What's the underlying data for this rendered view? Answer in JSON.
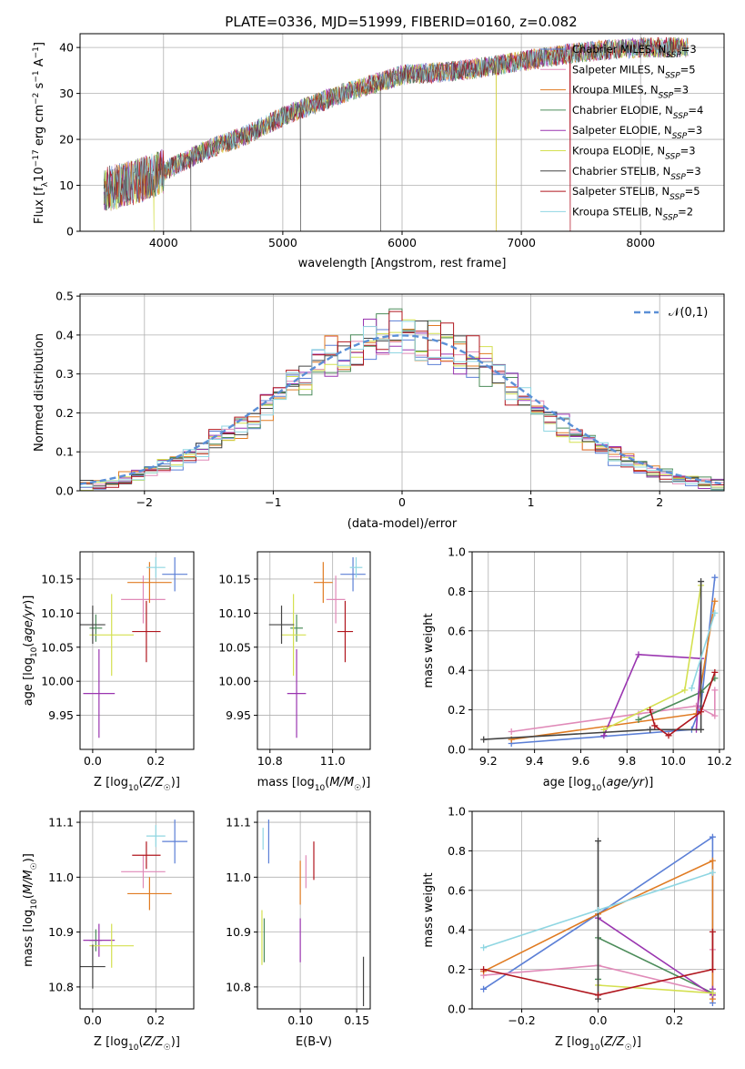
{
  "title": "PLATE=0336, MJD=51999, FIBERID=0160, z=0.082",
  "colors": {
    "Chabrier MILES": "#5b7fd6",
    "Salpeter MILES": "#e08ab8",
    "Kroupa MILES": "#e07b22",
    "Chabrier ELODIE": "#4c8c5a",
    "Salpeter ELODIE": "#9a35b0",
    "Kroupa ELODIE": "#d4e050",
    "Chabrier STELIB": "#444444",
    "Salpeter STELIB": "#b0161e",
    "Kroupa STELIB": "#8fd6e2",
    "normal": "#5b8fd6"
  },
  "chart_data": [
    {
      "type": "line",
      "panel": "spectrum",
      "xlabel": "wavelength [Angstrom, rest frame]",
      "ylabel": "Flux [f_λ10^-17 erg cm^-2 s^-1 A^-1]",
      "xlim": [
        3300,
        8700
      ],
      "ylim": [
        0,
        43
      ],
      "xticks": [
        4000,
        5000,
        6000,
        7000,
        8000
      ],
      "yticks": [
        0,
        10,
        20,
        30,
        40
      ],
      "grid": true,
      "legend": "upper-right",
      "legend_entries": [
        {
          "name": "Chabrier MILES, N_SSP=3",
          "main": "Chabrier MILES, N",
          "sub": "SSP",
          "tail": "=3"
        },
        {
          "name": "Salpeter MILES, N_SSP=5",
          "main": "Salpeter MILES, N",
          "sub": "SSP",
          "tail": "=5"
        },
        {
          "name": "Kroupa MILES, N_SSP=3",
          "main": "Kroupa MILES, N",
          "sub": "SSP",
          "tail": "=3"
        },
        {
          "name": "Chabrier ELODIE, N_SSP=4",
          "main": "Chabrier ELODIE, N",
          "sub": "SSP",
          "tail": "=4"
        },
        {
          "name": "Salpeter ELODIE, N_SSP=3",
          "main": "Salpeter ELODIE, N",
          "sub": "SSP",
          "tail": "=3"
        },
        {
          "name": "Kroupa ELODIE, N_SSP=3",
          "main": "Kroupa ELODIE, N",
          "sub": "SSP",
          "tail": "=3"
        },
        {
          "name": "Chabrier STELIB, N_SSP=3",
          "main": "Chabrier STELIB, N",
          "sub": "SSP",
          "tail": "=3"
        },
        {
          "name": "Salpeter STELIB, N_SSP=5",
          "main": "Salpeter STELIB, N",
          "sub": "SSP",
          "tail": "=5"
        },
        {
          "name": "Kroupa STELIB, N_SSP=2",
          "main": "Kroupa STELIB, N",
          "sub": "SSP",
          "tail": "=2"
        }
      ],
      "continuum": {
        "x": [
          3500,
          3800,
          4000,
          4300,
          4700,
          5000,
          5500,
          6000,
          6500,
          7000,
          7500,
          8000,
          8400
        ],
        "y": [
          9,
          11,
          13,
          17,
          21,
          25,
          30,
          34,
          35,
          37,
          39,
          40,
          40
        ]
      },
      "drops": [
        {
          "series": "Kroupa ELODIE",
          "x": 3920
        },
        {
          "series": "Chabrier STELIB",
          "x": 4230
        },
        {
          "series": "Chabrier STELIB",
          "x": 5150
        },
        {
          "series": "Chabrier STELIB",
          "x": 5820
        },
        {
          "series": "Kroupa MILES",
          "x": 6790
        },
        {
          "series": "Kroupa ELODIE",
          "x": 6790
        },
        {
          "series": "Salpeter MILES",
          "x": 7410
        },
        {
          "series": "Salpeter STELIB",
          "x": 7410
        }
      ]
    },
    {
      "type": "line",
      "panel": "residual-histogram",
      "xlabel": "(data-model)/error",
      "ylabel": "Normed distribution",
      "xlim": [
        -2.5,
        2.5
      ],
      "ylim": [
        0,
        0.505
      ],
      "xticks": [
        -2,
        -1,
        0,
        1,
        2
      ],
      "yticks": [
        0.0,
        0.1,
        0.2,
        0.3,
        0.4,
        0.5
      ],
      "grid": true,
      "bin_width": 0.1,
      "reference": {
        "name": "𝒩(0,1)",
        "mean": 0,
        "sigma": 1
      },
      "legend": "upper-right"
    },
    {
      "type": "scatter",
      "panel": "age-vs-Z",
      "xlabel": "Z [log10(Z/Z☉)]",
      "ylabel": "age [log10(age/yr)]",
      "xlim": [
        -0.04,
        0.32
      ],
      "ylim": [
        9.9,
        10.19
      ],
      "xticks": [
        0.0,
        0.2
      ],
      "yticks": [
        9.95,
        10.0,
        10.05,
        10.1,
        10.15
      ],
      "grid": true,
      "points": [
        {
          "series": "Chabrier MILES",
          "x": 0.26,
          "y": 10.157,
          "xerr": 0.04,
          "yerr": 0.025
        },
        {
          "series": "Salpeter MILES",
          "x": 0.16,
          "y": 10.12,
          "xerr": 0.07,
          "yerr": 0.035
        },
        {
          "series": "Kroupa MILES",
          "x": 0.18,
          "y": 10.145,
          "xerr": 0.07,
          "yerr": 0.03
        },
        {
          "series": "Chabrier ELODIE",
          "x": 0.01,
          "y": 10.078,
          "xerr": 0.02,
          "yerr": 0.02
        },
        {
          "series": "Salpeter ELODIE",
          "x": 0.02,
          "y": 9.982,
          "xerr": 0.05,
          "yerr": 0.065
        },
        {
          "series": "Kroupa ELODIE",
          "x": 0.06,
          "y": 10.068,
          "xerr": 0.07,
          "yerr": 0.06
        },
        {
          "series": "Chabrier STELIB",
          "x": 0.0,
          "y": 10.083,
          "xerr": 0.04,
          "yerr": 0.028
        },
        {
          "series": "Salpeter STELIB",
          "x": 0.17,
          "y": 10.073,
          "xerr": 0.045,
          "yerr": 0.045
        },
        {
          "series": "Kroupa STELIB",
          "x": 0.2,
          "y": 10.167,
          "xerr": 0.03,
          "yerr": 0.015
        }
      ]
    },
    {
      "type": "scatter",
      "panel": "age-vs-mass",
      "xlabel": "mass [log10(M/M☉)]",
      "ylabel": "",
      "xlim": [
        10.76,
        11.12
      ],
      "ylim": [
        9.9,
        10.19
      ],
      "xticks": [
        10.8,
        11.0
      ],
      "yticks": [
        9.95,
        10.0,
        10.05,
        10.1,
        10.15
      ],
      "grid": true,
      "points": [
        {
          "series": "Chabrier MILES",
          "x": 11.065,
          "y": 10.157,
          "xerr": 0.04,
          "yerr": 0.025
        },
        {
          "series": "Salpeter MILES",
          "x": 11.01,
          "y": 10.12,
          "xerr": 0.03,
          "yerr": 0.035
        },
        {
          "series": "Kroupa MILES",
          "x": 10.97,
          "y": 10.145,
          "xerr": 0.03,
          "yerr": 0.03
        },
        {
          "series": "Chabrier ELODIE",
          "x": 10.885,
          "y": 10.078,
          "xerr": 0.02,
          "yerr": 0.02
        },
        {
          "series": "Salpeter ELODIE",
          "x": 10.885,
          "y": 9.982,
          "xerr": 0.03,
          "yerr": 0.065
        },
        {
          "series": "Kroupa ELODIE",
          "x": 10.875,
          "y": 10.068,
          "xerr": 0.04,
          "yerr": 0.06
        },
        {
          "series": "Chabrier STELIB",
          "x": 10.837,
          "y": 10.083,
          "xerr": 0.04,
          "yerr": 0.028
        },
        {
          "series": "Salpeter STELIB",
          "x": 11.04,
          "y": 10.073,
          "xerr": 0.025,
          "yerr": 0.045
        },
        {
          "series": "Kroupa STELIB",
          "x": 11.075,
          "y": 10.167,
          "xerr": 0.02,
          "yerr": 0.015
        }
      ]
    },
    {
      "type": "line",
      "panel": "mass-weight-vs-age",
      "xlabel": "age [log10(age/yr)]",
      "ylabel": "mass weight",
      "xlim": [
        9.13,
        10.22
      ],
      "ylim": [
        0,
        1.0
      ],
      "xticks": [
        9.2,
        9.4,
        9.6,
        9.8,
        10.0,
        10.2
      ],
      "yticks": [
        0.0,
        0.2,
        0.4,
        0.6,
        0.8,
        1.0
      ],
      "grid": true,
      "series": [
        {
          "name": "Chabrier MILES",
          "x": [
            9.3,
            10.08,
            10.12,
            10.18
          ],
          "y": [
            0.03,
            0.1,
            0.22,
            0.87
          ]
        },
        {
          "name": "Salpeter MILES",
          "x": [
            9.3,
            9.85,
            10.1,
            10.18,
            10.18
          ],
          "y": [
            0.09,
            0.18,
            0.22,
            0.17,
            0.3
          ]
        },
        {
          "name": "Kroupa MILES",
          "x": [
            9.3,
            10.1,
            10.18
          ],
          "y": [
            0.05,
            0.18,
            0.75
          ]
        },
        {
          "name": "Chabrier ELODIE",
          "x": [
            9.85,
            10.12,
            10.18
          ],
          "y": [
            0.15,
            0.29,
            0.36
          ]
        },
        {
          "name": "Salpeter ELODIE",
          "x": [
            9.7,
            9.85,
            10.12,
            10.1
          ],
          "y": [
            0.07,
            0.48,
            0.46,
            0.1
          ]
        },
        {
          "name": "Kroupa ELODIE",
          "x": [
            9.7,
            10.05,
            10.12
          ],
          "y": [
            0.1,
            0.3,
            0.83
          ]
        },
        {
          "name": "Chabrier STELIB",
          "x": [
            9.18,
            9.9,
            10.12,
            10.12
          ],
          "y": [
            0.05,
            0.1,
            0.1,
            0.85
          ]
        },
        {
          "name": "Salpeter STELIB",
          "x": [
            9.9,
            9.92,
            9.98,
            10.12,
            10.18
          ],
          "y": [
            0.2,
            0.12,
            0.07,
            0.19,
            0.39
          ]
        },
        {
          "name": "Kroupa STELIB",
          "x": [
            10.08,
            10.18
          ],
          "y": [
            0.31,
            0.69
          ]
        }
      ]
    },
    {
      "type": "scatter",
      "panel": "mass-vs-Z",
      "xlabel": "Z [log10(Z/Z☉)]",
      "ylabel": "mass [log10(M/M☉)]",
      "xlim": [
        -0.04,
        0.32
      ],
      "ylim": [
        10.76,
        11.12
      ],
      "xticks": [
        0.0,
        0.2
      ],
      "yticks": [
        10.8,
        10.9,
        11.0,
        11.1
      ],
      "grid": true,
      "points": [
        {
          "series": "Chabrier MILES",
          "x": 0.26,
          "y": 11.065,
          "xerr": 0.04,
          "yerr": 0.04
        },
        {
          "series": "Salpeter MILES",
          "x": 0.16,
          "y": 11.01,
          "xerr": 0.07,
          "yerr": 0.03
        },
        {
          "series": "Kroupa MILES",
          "x": 0.18,
          "y": 10.97,
          "xerr": 0.07,
          "yerr": 0.03
        },
        {
          "series": "Chabrier ELODIE",
          "x": 0.01,
          "y": 10.885,
          "xerr": 0.02,
          "yerr": 0.02
        },
        {
          "series": "Salpeter ELODIE",
          "x": 0.02,
          "y": 10.885,
          "xerr": 0.05,
          "yerr": 0.03
        },
        {
          "series": "Kroupa ELODIE",
          "x": 0.06,
          "y": 10.875,
          "xerr": 0.07,
          "yerr": 0.04
        },
        {
          "series": "Chabrier STELIB",
          "x": 0.0,
          "y": 10.837,
          "xerr": 0.04,
          "yerr": 0.04
        },
        {
          "series": "Salpeter STELIB",
          "x": 0.17,
          "y": 11.04,
          "xerr": 0.045,
          "yerr": 0.025
        },
        {
          "series": "Kroupa STELIB",
          "x": 0.2,
          "y": 11.075,
          "xerr": 0.03,
          "yerr": 0.02
        }
      ]
    },
    {
      "type": "scatter",
      "panel": "mass-vs-ebv",
      "xlabel": "E(B-V)",
      "ylabel": "",
      "xlim": [
        0.062,
        0.162
      ],
      "ylim": [
        10.76,
        11.12
      ],
      "xticks": [
        0.05,
        0.1,
        0.15
      ],
      "yticks": [
        10.8,
        10.9,
        11.0,
        11.1
      ],
      "grid": true,
      "points": [
        {
          "series": "Chabrier MILES",
          "x": 0.072,
          "y": 11.065,
          "xerr": 0.0,
          "yerr": 0.04
        },
        {
          "series": "Salpeter MILES",
          "x": 0.105,
          "y": 11.01,
          "xerr": 0.0,
          "yerr": 0.03
        },
        {
          "series": "Kroupa MILES",
          "x": 0.1,
          "y": 10.99,
          "xerr": 0.0,
          "yerr": 0.04
        },
        {
          "series": "Chabrier ELODIE",
          "x": 0.068,
          "y": 10.885,
          "xerr": 0.0,
          "yerr": 0.04
        },
        {
          "series": "Salpeter ELODIE",
          "x": 0.1,
          "y": 10.885,
          "xerr": 0.0,
          "yerr": 0.04
        },
        {
          "series": "Kroupa ELODIE",
          "x": 0.066,
          "y": 10.89,
          "xerr": 0.0,
          "yerr": 0.05
        },
        {
          "series": "Chabrier STELIB",
          "x": 0.156,
          "y": 10.81,
          "xerr": 0.0,
          "yerr": 0.045
        },
        {
          "series": "Salpeter STELIB",
          "x": 0.112,
          "y": 11.03,
          "xerr": 0.0,
          "yerr": 0.035
        },
        {
          "series": "Kroupa STELIB",
          "x": 0.067,
          "y": 11.07,
          "xerr": 0.0,
          "yerr": 0.02
        }
      ]
    },
    {
      "type": "line",
      "panel": "mass-weight-vs-Z",
      "xlabel": "Z [log10(Z/Z☉)]",
      "ylabel": "mass weight",
      "xlim": [
        -0.33,
        0.33
      ],
      "ylim": [
        0,
        1.0
      ],
      "xticks": [
        -0.2,
        0.0,
        0.2
      ],
      "yticks": [
        0.0,
        0.2,
        0.4,
        0.6,
        0.8,
        1.0
      ],
      "grid": true,
      "series": [
        {
          "name": "Chabrier MILES",
          "x": [
            -0.3,
            0.0,
            0.3,
            0.3
          ],
          "y": [
            0.1,
            0.48,
            0.87,
            0.03
          ]
        },
        {
          "name": "Salpeter MILES",
          "x": [
            -0.3,
            0.0,
            0.3,
            0.3
          ],
          "y": [
            0.17,
            0.22,
            0.08,
            0.3
          ]
        },
        {
          "name": "Kroupa MILES",
          "x": [
            -0.3,
            0.0,
            0.3,
            0.3
          ],
          "y": [
            0.19,
            0.48,
            0.75,
            0.05
          ]
        },
        {
          "name": "Chabrier ELODIE",
          "x": [
            0.0,
            0.0,
            0.3
          ],
          "y": [
            0.15,
            0.36,
            0.08
          ]
        },
        {
          "name": "Salpeter ELODIE",
          "x": [
            0.0,
            0.3,
            0.3
          ],
          "y": [
            0.46,
            0.07,
            0.1
          ]
        },
        {
          "name": "Kroupa ELODIE",
          "x": [
            0.0,
            0.3
          ],
          "y": [
            0.12,
            0.08
          ]
        },
        {
          "name": "Chabrier STELIB",
          "x": [
            0.0,
            0.0
          ],
          "y": [
            0.05,
            0.85
          ]
        },
        {
          "name": "Salpeter STELIB",
          "x": [
            -0.3,
            0.0,
            0.3,
            0.3
          ],
          "y": [
            0.2,
            0.07,
            0.2,
            0.39
          ]
        },
        {
          "name": "Kroupa STELIB",
          "x": [
            -0.3,
            0.0,
            0.3
          ],
          "y": [
            0.31,
            0.5,
            0.69
          ]
        }
      ]
    }
  ]
}
